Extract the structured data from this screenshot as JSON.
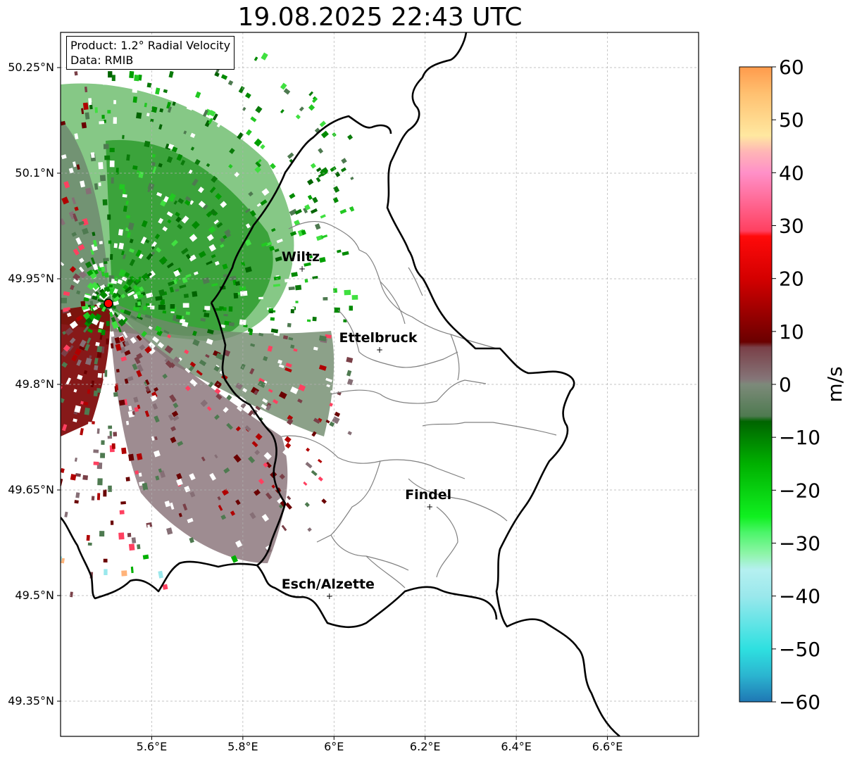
{
  "title": "19.08.2025 22:43 UTC",
  "info": {
    "product": "Product: 1.2° Radial Velocity",
    "data_source": "Data: RMIB"
  },
  "map": {
    "lon_range": [
      5.4,
      6.8
    ],
    "lat_range": [
      49.3,
      50.3
    ],
    "lon_ticks": [
      {
        "value": 5.6,
        "label": "5.6°E"
      },
      {
        "value": 5.8,
        "label": "5.8°E"
      },
      {
        "value": 6.0,
        "label": "6°E"
      },
      {
        "value": 6.2,
        "label": "6.2°E"
      },
      {
        "value": 6.4,
        "label": "6.4°E"
      },
      {
        "value": 6.6,
        "label": "6.6°E"
      }
    ],
    "lat_ticks": [
      {
        "value": 50.25,
        "label": "50.25°N"
      },
      {
        "value": 50.1,
        "label": "50.1°N"
      },
      {
        "value": 49.95,
        "label": "49.95°N"
      },
      {
        "value": 49.8,
        "label": "49.8°N"
      },
      {
        "value": 49.65,
        "label": "49.65°N"
      },
      {
        "value": 49.5,
        "label": "49.5°N"
      },
      {
        "value": 49.35,
        "label": "49.35°N"
      }
    ],
    "grid": true,
    "radar_site": {
      "lon": 5.505,
      "lat": 49.915
    },
    "cities": [
      {
        "name": "Wiltz",
        "lon": 5.93,
        "lat": 49.965
      },
      {
        "name": "Ettelbruck",
        "lon": 6.1,
        "lat": 49.85
      },
      {
        "name": "Findel",
        "lon": 6.21,
        "lat": 49.627
      },
      {
        "name": "Esch/Alzette",
        "lon": 5.99,
        "lat": 49.5
      }
    ]
  },
  "colorbar": {
    "label": "m/s",
    "min": -60,
    "max": 60,
    "ticks": [
      {
        "value": 60,
        "label": "60"
      },
      {
        "value": 50,
        "label": "50"
      },
      {
        "value": 40,
        "label": "40"
      },
      {
        "value": 30,
        "label": "30"
      },
      {
        "value": 20,
        "label": "20"
      },
      {
        "value": 10,
        "label": "10"
      },
      {
        "value": 0,
        "label": "0"
      },
      {
        "value": -10,
        "label": "−10"
      },
      {
        "value": -20,
        "label": "−20"
      },
      {
        "value": -30,
        "label": "−30"
      },
      {
        "value": -40,
        "label": "−40"
      },
      {
        "value": -50,
        "label": "−50"
      },
      {
        "value": -60,
        "label": "−60"
      }
    ],
    "stops": [
      {
        "value": -60,
        "color": "#1f77b4"
      },
      {
        "value": -55,
        "color": "#2bb5d0"
      },
      {
        "value": -50,
        "color": "#2ee0e0"
      },
      {
        "value": -40,
        "color": "#9ae8ec"
      },
      {
        "value": -35,
        "color": "#b5f0f0"
      },
      {
        "value": -32,
        "color": "#8ef5a8"
      },
      {
        "value": -28,
        "color": "#4cf56a"
      },
      {
        "value": -25,
        "color": "#10f020"
      },
      {
        "value": -15,
        "color": "#00b000"
      },
      {
        "value": -7,
        "color": "#006400"
      },
      {
        "value": -6,
        "color": "#4e7a50"
      },
      {
        "value": 0,
        "color": "#7d8a7a"
      },
      {
        "value": 1,
        "color": "#857578"
      },
      {
        "value": 7,
        "color": "#7a4048"
      },
      {
        "value": 8,
        "color": "#6a0000"
      },
      {
        "value": 20,
        "color": "#d40000"
      },
      {
        "value": 28,
        "color": "#ff0a0a"
      },
      {
        "value": 29,
        "color": "#ff4060"
      },
      {
        "value": 40,
        "color": "#ff90c8"
      },
      {
        "value": 44,
        "color": "#ffb6b6"
      },
      {
        "value": 47,
        "color": "#ffe8a0"
      },
      {
        "value": 55,
        "color": "#ffc070"
      },
      {
        "value": 60,
        "color": "#ff9a4c"
      }
    ]
  }
}
